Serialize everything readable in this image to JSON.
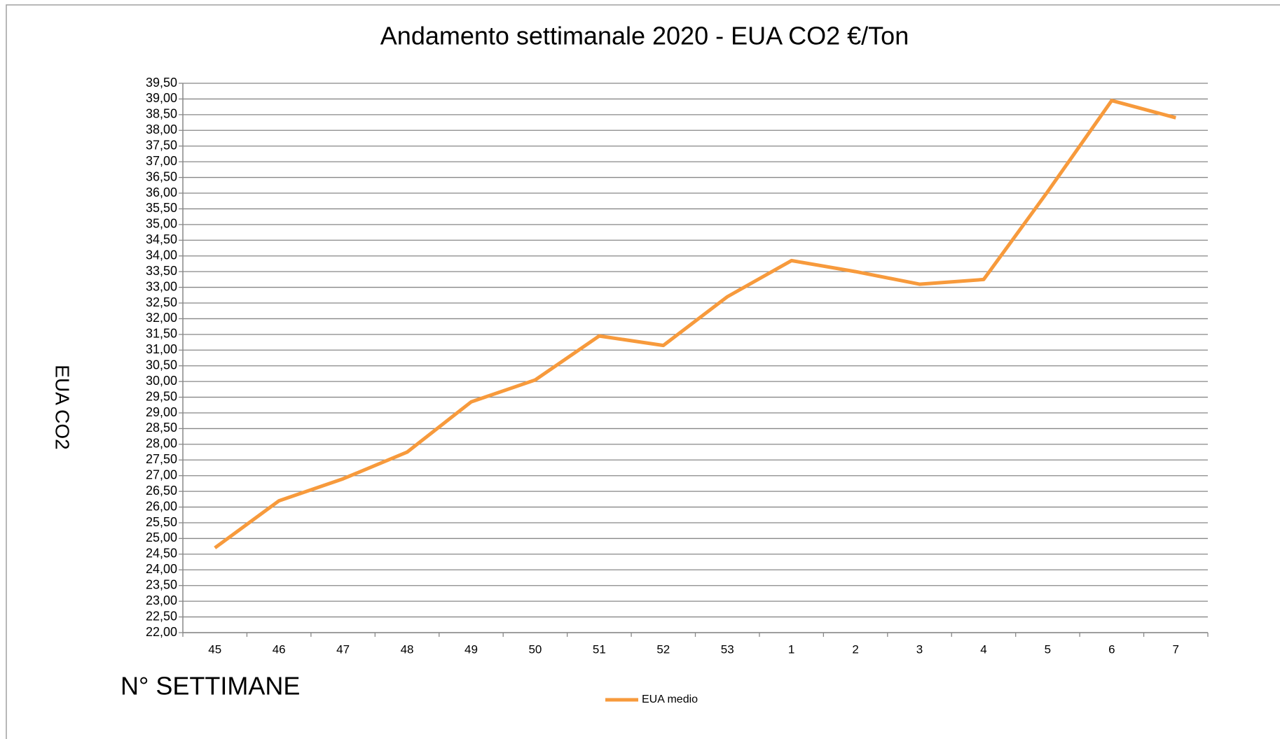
{
  "chart_data": {
    "type": "line",
    "title": "Andamento settimanale 2020 - EUA CO2 €/Ton",
    "x_label": "N° SETTIMANE",
    "y_label": "EUA CO2",
    "categories": [
      "45",
      "46",
      "47",
      "48",
      "49",
      "50",
      "51",
      "52",
      "53",
      "1",
      "2",
      "3",
      "4",
      "5",
      "6",
      "7"
    ],
    "series": [
      {
        "name": "EUA medio",
        "color": "#f79a3c",
        "values": [
          24.7,
          26.2,
          26.9,
          27.75,
          29.35,
          30.05,
          31.45,
          31.15,
          32.7,
          33.85,
          33.5,
          33.1,
          33.25,
          36.05,
          38.95,
          38.4
        ]
      }
    ],
    "ylim": [
      22,
      39.5
    ],
    "yticks": [
      {
        "value": 22,
        "label": "22,00"
      },
      {
        "value": 22.5,
        "label": "22,50"
      },
      {
        "value": 23,
        "label": "23,00"
      },
      {
        "value": 23.5,
        "label": "23,50"
      },
      {
        "value": 24,
        "label": "24,00"
      },
      {
        "value": 24.5,
        "label": "24,50"
      },
      {
        "value": 25,
        "label": "25,00"
      },
      {
        "value": 25.5,
        "label": "25,50"
      },
      {
        "value": 26,
        "label": "26,00"
      },
      {
        "value": 26.5,
        "label": "26,50"
      },
      {
        "value": 27,
        "label": "27,00"
      },
      {
        "value": 27.5,
        "label": "27,50"
      },
      {
        "value": 28,
        "label": "28,00"
      },
      {
        "value": 28.5,
        "label": "28,50"
      },
      {
        "value": 29,
        "label": "29,00"
      },
      {
        "value": 29.5,
        "label": "29,50"
      },
      {
        "value": 30,
        "label": "30,00"
      },
      {
        "value": 30.5,
        "label": "30,50"
      },
      {
        "value": 31,
        "label": "31,00"
      },
      {
        "value": 31.5,
        "label": "31,50"
      },
      {
        "value": 32,
        "label": "32,00"
      },
      {
        "value": 32.5,
        "label": "32,50"
      },
      {
        "value": 33,
        "label": "33,00"
      },
      {
        "value": 33.5,
        "label": "33,50"
      },
      {
        "value": 34,
        "label": "34,00"
      },
      {
        "value": 34.5,
        "label": "34,50"
      },
      {
        "value": 35,
        "label": "35,00"
      },
      {
        "value": 35.5,
        "label": "35,50"
      },
      {
        "value": 36,
        "label": "36,00"
      },
      {
        "value": 36.5,
        "label": "36,50"
      },
      {
        "value": 37,
        "label": "37,00"
      },
      {
        "value": 37.5,
        "label": "37,50"
      },
      {
        "value": 38,
        "label": "38,00"
      },
      {
        "value": 38.5,
        "label": "38,50"
      },
      {
        "value": 39,
        "label": "39,00"
      },
      {
        "value": 39.5,
        "label": "39,50"
      }
    ],
    "grid": true,
    "legend": "bottom"
  }
}
